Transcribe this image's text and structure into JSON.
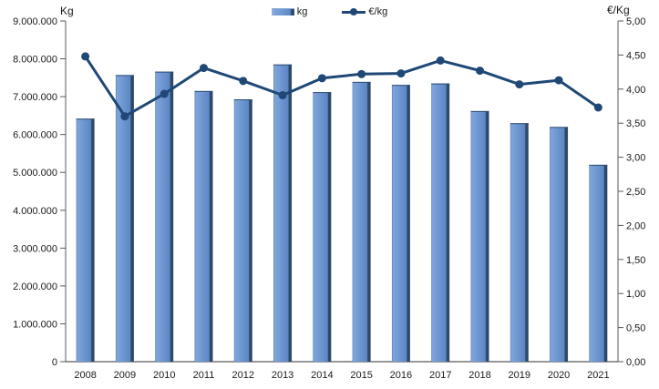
{
  "chart_data": {
    "type": "bar",
    "title": "",
    "categories": [
      "2008",
      "2009",
      "2010",
      "2011",
      "2012",
      "2013",
      "2014",
      "2015",
      "2016",
      "2017",
      "2018",
      "2019",
      "2020",
      "2021"
    ],
    "series": [
      {
        "name": "kg",
        "type": "bar",
        "axis": "left",
        "values": [
          6420000,
          7570000,
          7660000,
          7150000,
          6930000,
          7850000,
          7120000,
          7390000,
          7310000,
          7350000,
          6620000,
          6300000,
          6200000,
          5200000
        ]
      },
      {
        "name": "€/kg",
        "type": "line",
        "axis": "right",
        "values": [
          4.48,
          3.6,
          3.93,
          4.31,
          4.12,
          3.91,
          4.16,
          4.22,
          4.23,
          4.42,
          4.27,
          4.07,
          4.13,
          3.73
        ]
      }
    ],
    "left_axis": {
      "title": "Kg",
      "min": 0,
      "max": 9000000,
      "step": 1000000,
      "tick_labels": [
        "0",
        "1.000.000",
        "2.000.000",
        "3.000.000",
        "4.000.000",
        "5.000.000",
        "6.000.000",
        "7.000.000",
        "8.000.000",
        "9.000.000"
      ]
    },
    "right_axis": {
      "title": "€/Kg",
      "min": 0,
      "max": 5,
      "step": 0.5,
      "tick_labels": [
        "0,00",
        "0,50",
        "1,00",
        "1,50",
        "2,00",
        "2,50",
        "3,00",
        "3,50",
        "4,00",
        "4,50",
        "5,00"
      ]
    },
    "legend": {
      "position": "top-center",
      "items": [
        {
          "label": "kg",
          "swatch": "bar-swatch-icon"
        },
        {
          "label": "€/kg",
          "swatch": "line-swatch-icon"
        }
      ]
    },
    "grid": false,
    "colors": {
      "bar_fill": "#6c95d0",
      "bar_fill_light": "#7fa5db",
      "bar_edge": "#2e4c70",
      "line": "#1f4876",
      "axis": "#595959",
      "text": "#1a1a1a",
      "background": "#ffffff"
    }
  }
}
